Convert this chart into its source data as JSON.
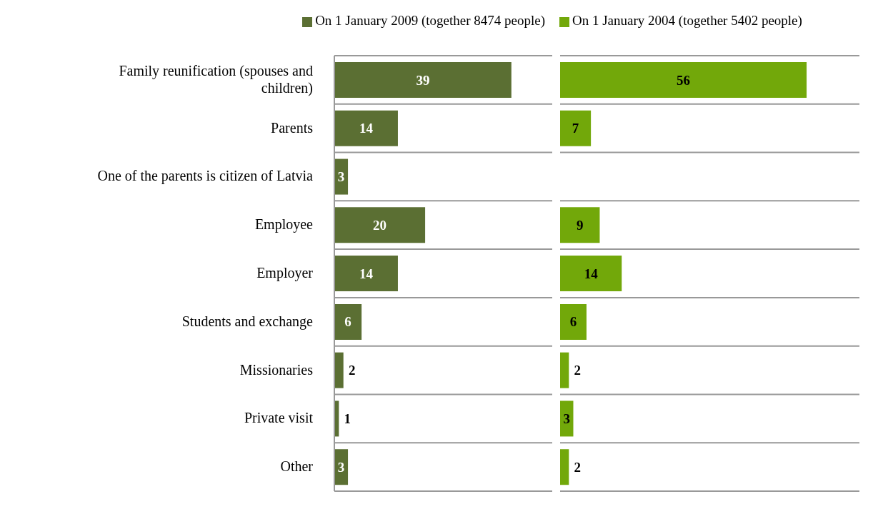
{
  "chart_data": [
    {
      "type": "bar",
      "orientation": "horizontal",
      "categories": [
        "Family reunification (spouses and children)",
        "Parents",
        "One of the parents is citizen of Latvia",
        "Employee",
        "Employer",
        "Students and exchange",
        "Missionaries",
        "Private visit",
        "Other"
      ],
      "series": [
        {
          "name": "On 1 January 2009 (together 8474 people)",
          "color": "#5b6f33",
          "values": [
            39,
            14,
            3,
            20,
            14,
            6,
            2,
            1,
            3
          ]
        }
      ],
      "xlim": [
        0,
        48
      ],
      "data_labels": true,
      "grid": "y",
      "legend": "top",
      "tick_labels": "y"
    },
    {
      "type": "bar",
      "orientation": "horizontal",
      "categories": [
        null,
        null,
        null,
        null,
        null,
        null,
        null,
        null,
        null
      ],
      "series": [
        {
          "name": "On 1 January 2004 (together 5402 people)",
          "color": "#72a80a",
          "values": [
            56,
            7,
            null,
            9,
            14,
            6,
            2,
            3,
            2
          ]
        }
      ],
      "xlim": [
        0,
        68
      ],
      "data_labels": true,
      "grid": "y",
      "legend": "top",
      "tick_labels": false
    }
  ]
}
